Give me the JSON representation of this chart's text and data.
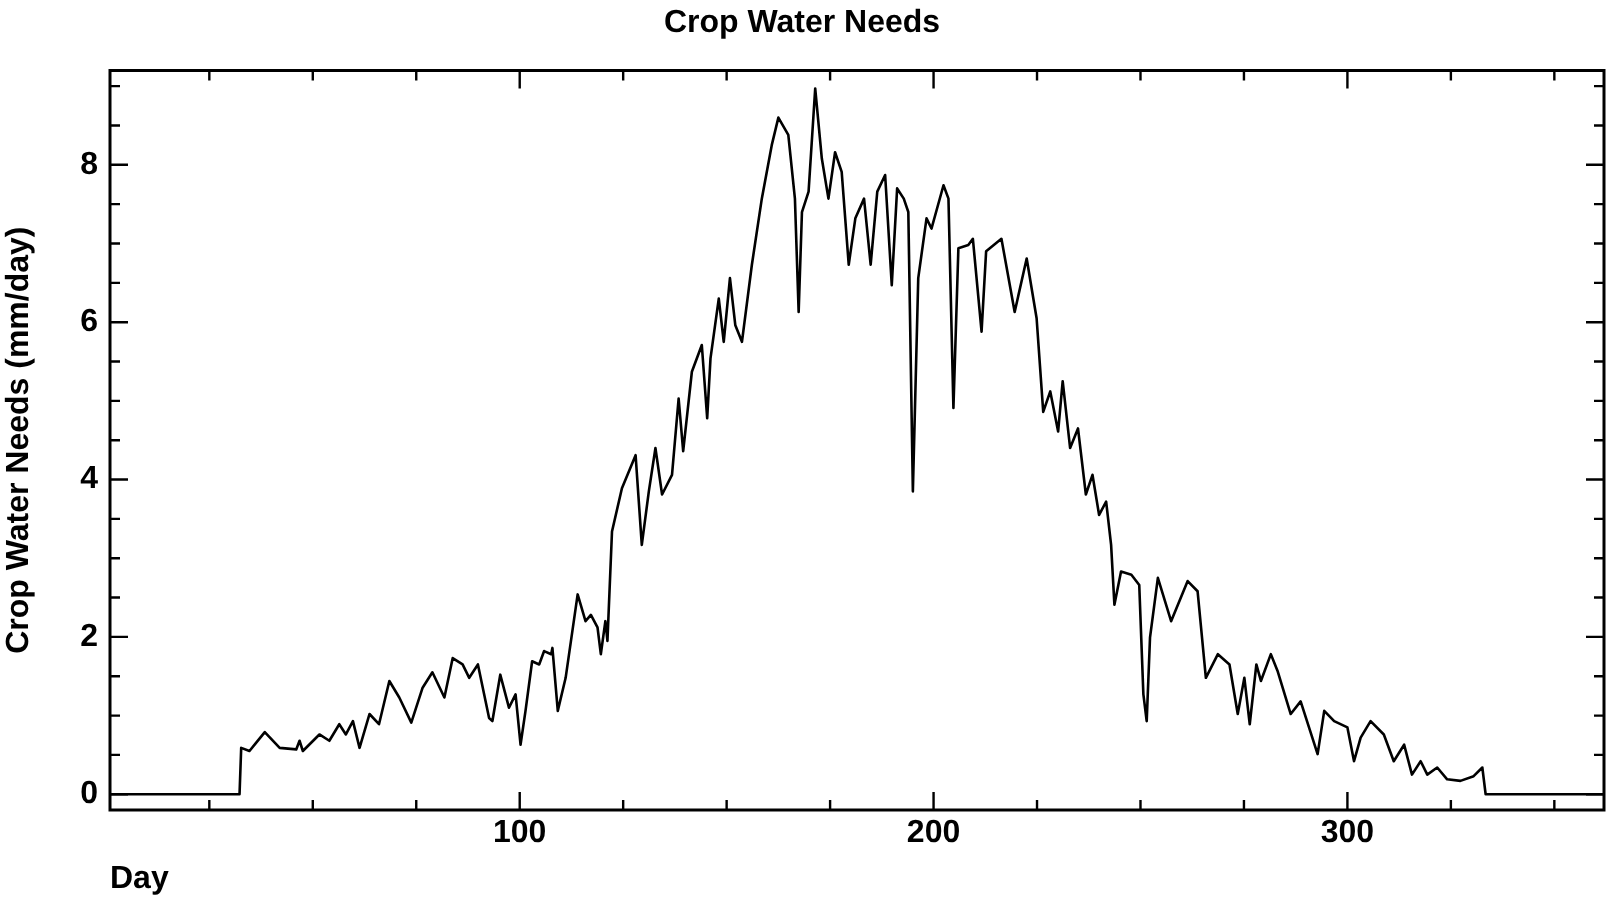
{
  "chart_data": {
    "type": "line",
    "title": "Crop Water Needs",
    "xlabel": "Day",
    "ylabel": "Crop Water Needs (mm/day)",
    "x": [
      1,
      32.3,
      32.7,
      34.7,
      38.4,
      42,
      46,
      46.8,
      47.6,
      51.6,
      54,
      56.4,
      58,
      59.7,
      61.3,
      63.7,
      66,
      68.5,
      70.9,
      73.8,
      76.5,
      78.9,
      81.8,
      83.8,
      86.2,
      87.8,
      89.9,
      92.6,
      93.4,
      95.3,
      97.4,
      99,
      100.2,
      101.4,
      103,
      104.7,
      105.9,
      107.6,
      107.9,
      109.2,
      111.1,
      114,
      115.9,
      117.2,
      118.8,
      119.6,
      120.7,
      121.2,
      122.3,
      124.7,
      128,
      129.5,
      131.2,
      132.8,
      134.4,
      136.8,
      138.4,
      139.5,
      141.6,
      144,
      145.3,
      146.1,
      148.1,
      149.3,
      150.8,
      152.1,
      153.7,
      156.1,
      158.5,
      160.9,
      162.5,
      164.9,
      166.5,
      167.4,
      168.2,
      169.8,
      171.4,
      173,
      174.6,
      176.2,
      177.8,
      179.5,
      181.1,
      183.2,
      184.8,
      186.4,
      188.3,
      189.9,
      191.2,
      192.8,
      193.9,
      195,
      196.3,
      198.3,
      199.5,
      202.4,
      203.6,
      204.8,
      206,
      208.4,
      209.5,
      211.6,
      212.7,
      216.4,
      219.6,
      222.5,
      224.9,
      226.5,
      228.2,
      230.1,
      231.2,
      233,
      234.9,
      236.8,
      238.4,
      240,
      241.7,
      242.9,
      243.7,
      245.3,
      247.8,
      249.7,
      250.7,
      251.5,
      252.3,
      254.2,
      257.4,
      261.4,
      263.8,
      265.8,
      268.7,
      271.5,
      273.5,
      275.1,
      276.4,
      278,
      279.1,
      281.5,
      283.1,
      286.3,
      288.7,
      292.8,
      294.4,
      296.8,
      300,
      301.6,
      303.2,
      305.6,
      308.8,
      311.2,
      313.7,
      315.6,
      317.7,
      319.3,
      321.7,
      324.1,
      327.3,
      330.5,
      332.6,
      333.4,
      362
    ],
    "series": [
      {
        "color": "#000000",
        "values": [
          0,
          0,
          0.59,
          0.55,
          0.79,
          0.59,
          0.57,
          0.68,
          0.55,
          0.76,
          0.68,
          0.89,
          0.76,
          0.93,
          0.59,
          1.02,
          0.89,
          1.44,
          1.23,
          0.91,
          1.35,
          1.55,
          1.23,
          1.73,
          1.65,
          1.48,
          1.65,
          0.97,
          0.93,
          1.52,
          1.1,
          1.27,
          0.63,
          1.06,
          1.69,
          1.65,
          1.82,
          1.78,
          1.86,
          1.06,
          1.48,
          2.54,
          2.2,
          2.28,
          2.12,
          1.78,
          2.2,
          1.95,
          3.34,
          3.89,
          4.31,
          3.17,
          3.85,
          4.4,
          3.81,
          4.06,
          5.03,
          4.36,
          5.37,
          5.71,
          4.78,
          5.54,
          6.3,
          5.75,
          6.56,
          5.96,
          5.75,
          6.73,
          7.57,
          8.25,
          8.6,
          8.38,
          7.57,
          6.13,
          7.4,
          7.66,
          8.97,
          8.08,
          7.57,
          8.16,
          7.91,
          6.73,
          7.32,
          7.57,
          6.73,
          7.66,
          7.87,
          6.47,
          7.7,
          7.57,
          7.4,
          3.85,
          6.56,
          7.32,
          7.19,
          7.74,
          7.57,
          4.91,
          6.94,
          6.98,
          7.06,
          5.88,
          6.9,
          7.06,
          6.13,
          6.81,
          6.05,
          4.86,
          5.12,
          4.61,
          5.25,
          4.4,
          4.65,
          3.81,
          4.06,
          3.55,
          3.72,
          3.17,
          2.41,
          2.83,
          2.79,
          2.66,
          1.27,
          0.93,
          1.99,
          2.75,
          2.2,
          2.71,
          2.58,
          1.48,
          1.78,
          1.65,
          1.02,
          1.48,
          0.89,
          1.65,
          1.44,
          1.78,
          1.57,
          1.02,
          1.18,
          0.51,
          1.06,
          0.93,
          0.85,
          0.42,
          0.72,
          0.93,
          0.76,
          0.42,
          0.63,
          0.25,
          0.42,
          0.25,
          0.34,
          0.19,
          0.17,
          0.23,
          0.34,
          0,
          0
        ]
      }
    ],
    "xlim": [
      1,
      362
    ],
    "ylim": [
      -0.2,
      9.2
    ],
    "xticks": [
      {
        "value": 25,
        "label": null
      },
      {
        "value": 50,
        "label": null
      },
      {
        "value": 75,
        "label": null
      },
      100,
      {
        "value": 125,
        "label": null
      },
      {
        "value": 150,
        "label": null
      },
      {
        "value": 175,
        "label": null
      },
      200,
      {
        "value": 225,
        "label": null
      },
      {
        "value": 250,
        "label": null
      },
      {
        "value": 275,
        "label": null
      },
      300,
      {
        "value": 325,
        "label": null
      },
      {
        "value": 350,
        "label": null
      }
    ],
    "yticks": [
      0,
      {
        "value": 0.5,
        "label": null
      },
      {
        "value": 1,
        "label": null
      },
      {
        "value": 1.5,
        "label": null
      },
      2,
      {
        "value": 2.5,
        "label": null
      },
      {
        "value": 3,
        "label": null
      },
      {
        "value": 3.5,
        "label": null
      },
      4,
      {
        "value": 4.5,
        "label": null
      },
      {
        "value": 5,
        "label": null
      },
      {
        "value": 5.5,
        "label": null
      },
      6,
      {
        "value": 6.5,
        "label": null
      },
      {
        "value": 7,
        "label": null
      },
      {
        "value": 7.5,
        "label": null
      },
      8,
      {
        "value": 8.5,
        "label": null
      },
      {
        "value": 9,
        "label": null
      }
    ],
    "grid": false,
    "legend": false,
    "marker": "none",
    "line_style": "solid"
  }
}
